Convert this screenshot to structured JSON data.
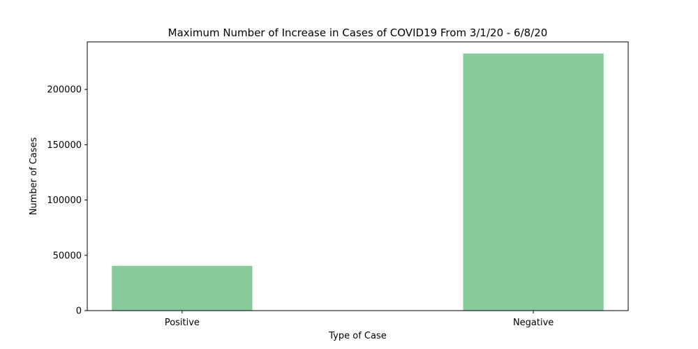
{
  "chart_data": {
    "type": "bar",
    "title": "Maximum Number of Increase in Cases of COVID19 From 3/1/20 - 6/8/20",
    "xlabel": "Type of Case",
    "ylabel": "Number of Cases",
    "categories": [
      "Positive",
      "Negative"
    ],
    "values": [
      40500,
      232500
    ],
    "ylim": [
      0,
      243000
    ],
    "yticks": [
      0,
      50000,
      100000,
      150000,
      200000
    ],
    "ytick_labels": [
      "0",
      "50000",
      "100000",
      "150000",
      "200000"
    ],
    "bar_color": "#88ca9a",
    "grid": false,
    "legend": "none"
  }
}
